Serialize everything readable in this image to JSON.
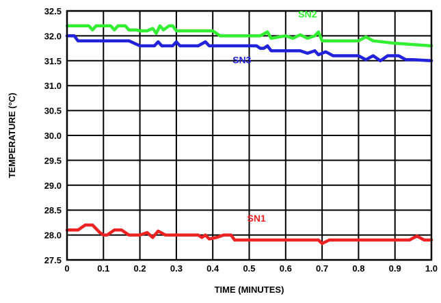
{
  "chart_data": {
    "type": "line",
    "title": "",
    "xlabel": "TIME (MINUTES)",
    "ylabel": "TEMPERATURE (°C)",
    "xlim": [
      0,
      1.0
    ],
    "ylim": [
      27.5,
      32.5
    ],
    "grid": true,
    "legend": "none",
    "x_ticks": [
      0,
      0.1,
      0.2,
      0.3,
      0.4,
      0.5,
      0.6,
      0.7,
      0.8,
      0.9,
      1.0
    ],
    "x_tick_labels": [
      "0",
      "0.1",
      "0.2",
      "0.3",
      "0.4",
      "0.5",
      "0.6",
      "0.7",
      "0.8",
      "0.9",
      "1.0"
    ],
    "y_ticks": [
      27.5,
      28.0,
      28.5,
      29.0,
      29.5,
      30.0,
      30.5,
      31.0,
      31.5,
      32.0,
      32.5
    ],
    "y_tick_labels": [
      "27.5",
      "28.0",
      "28.5",
      "29.0",
      "29.5",
      "30.0",
      "30.5",
      "31.0",
      "31.5",
      "32.0",
      "32.5"
    ],
    "series": [
      {
        "name": "SN2",
        "color": "#33ee33",
        "label_at": [
          0.66,
          32.37
        ],
        "points": [
          [
            0,
            32.2
          ],
          [
            0.06,
            32.2
          ],
          [
            0.07,
            32.12
          ],
          [
            0.08,
            32.2
          ],
          [
            0.12,
            32.2
          ],
          [
            0.13,
            32.12
          ],
          [
            0.14,
            32.2
          ],
          [
            0.16,
            32.2
          ],
          [
            0.17,
            32.12
          ],
          [
            0.19,
            32.12
          ],
          [
            0.2,
            32.1
          ],
          [
            0.22,
            32.1
          ],
          [
            0.235,
            32.15
          ],
          [
            0.245,
            32.05
          ],
          [
            0.255,
            32.2
          ],
          [
            0.265,
            32.12
          ],
          [
            0.28,
            32.2
          ],
          [
            0.29,
            32.2
          ],
          [
            0.3,
            32.1
          ],
          [
            0.4,
            32.1
          ],
          [
            0.42,
            32.0
          ],
          [
            0.53,
            32.0
          ],
          [
            0.55,
            32.08
          ],
          [
            0.56,
            31.95
          ],
          [
            0.6,
            32.0
          ],
          [
            0.62,
            31.95
          ],
          [
            0.64,
            32.02
          ],
          [
            0.66,
            31.95
          ],
          [
            0.68,
            32.0
          ],
          [
            0.69,
            32.08
          ],
          [
            0.7,
            31.9
          ],
          [
            0.8,
            31.9
          ],
          [
            0.82,
            31.98
          ],
          [
            0.84,
            31.9
          ],
          [
            0.9,
            31.85
          ],
          [
            1.0,
            31.8
          ]
        ]
      },
      {
        "name": "SN3",
        "color": "#2222dd",
        "label_at": [
          0.48,
          31.45
        ],
        "points": [
          [
            0,
            32.0
          ],
          [
            0.02,
            32.0
          ],
          [
            0.03,
            31.9
          ],
          [
            0.17,
            31.9
          ],
          [
            0.2,
            31.8
          ],
          [
            0.24,
            31.8
          ],
          [
            0.25,
            31.88
          ],
          [
            0.26,
            31.8
          ],
          [
            0.29,
            31.8
          ],
          [
            0.3,
            31.88
          ],
          [
            0.31,
            31.8
          ],
          [
            0.36,
            31.8
          ],
          [
            0.38,
            31.88
          ],
          [
            0.39,
            31.8
          ],
          [
            0.52,
            31.8
          ],
          [
            0.53,
            31.75
          ],
          [
            0.54,
            31.75
          ],
          [
            0.55,
            31.8
          ],
          [
            0.56,
            31.7
          ],
          [
            0.64,
            31.7
          ],
          [
            0.66,
            31.65
          ],
          [
            0.68,
            31.7
          ],
          [
            0.69,
            31.62
          ],
          [
            0.71,
            31.68
          ],
          [
            0.73,
            31.6
          ],
          [
            0.8,
            31.6
          ],
          [
            0.82,
            31.52
          ],
          [
            0.84,
            31.6
          ],
          [
            0.86,
            31.5
          ],
          [
            0.88,
            31.6
          ],
          [
            0.91,
            31.6
          ],
          [
            0.93,
            31.52
          ],
          [
            0.95,
            31.52
          ],
          [
            1.0,
            31.5
          ]
        ]
      },
      {
        "name": "SN1",
        "color": "#ee2222",
        "label_at": [
          0.52,
          28.27
        ],
        "points": [
          [
            0,
            28.1
          ],
          [
            0.03,
            28.1
          ],
          [
            0.05,
            28.2
          ],
          [
            0.07,
            28.2
          ],
          [
            0.09,
            28.05
          ],
          [
            0.1,
            28.0
          ],
          [
            0.11,
            28.0
          ],
          [
            0.13,
            28.1
          ],
          [
            0.15,
            28.1
          ],
          [
            0.17,
            28.0
          ],
          [
            0.2,
            28.0
          ],
          [
            0.22,
            28.05
          ],
          [
            0.235,
            27.95
          ],
          [
            0.25,
            28.08
          ],
          [
            0.27,
            28.0
          ],
          [
            0.36,
            28.0
          ],
          [
            0.37,
            27.95
          ],
          [
            0.38,
            28.0
          ],
          [
            0.39,
            27.92
          ],
          [
            0.41,
            27.95
          ],
          [
            0.43,
            28.0
          ],
          [
            0.45,
            28.0
          ],
          [
            0.46,
            27.9
          ],
          [
            0.69,
            27.9
          ],
          [
            0.7,
            27.83
          ],
          [
            0.72,
            27.9
          ],
          [
            0.94,
            27.9
          ],
          [
            0.96,
            27.98
          ],
          [
            0.98,
            27.9
          ],
          [
            1.0,
            27.9
          ]
        ]
      }
    ]
  }
}
